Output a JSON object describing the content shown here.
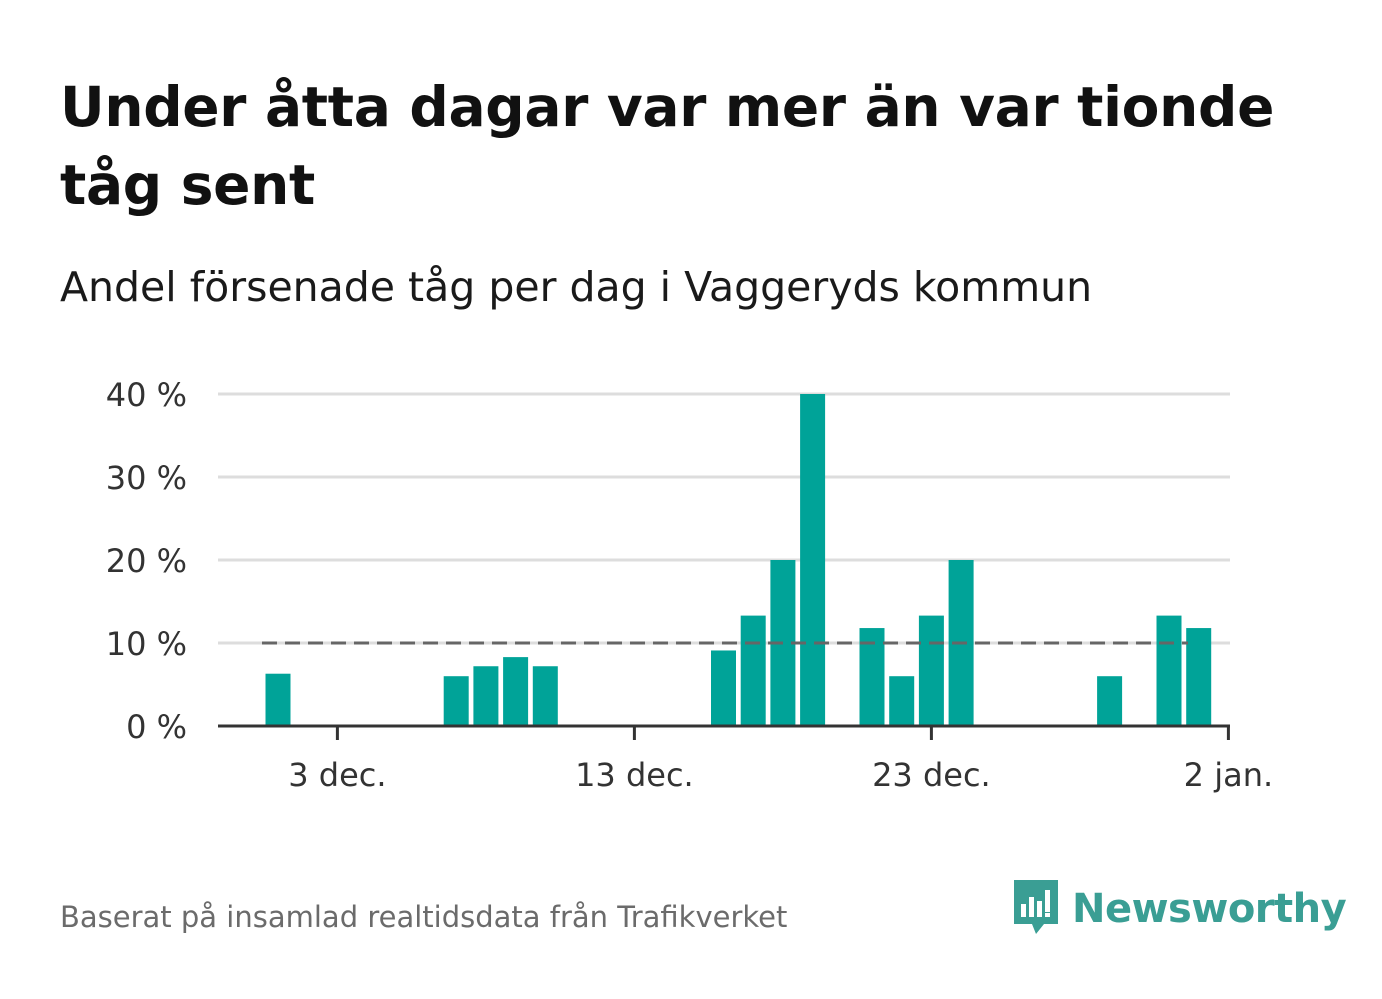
{
  "title": "Under åtta dagar var mer än var tionde tåg sent",
  "subtitle": "Andel försenade tåg per dag i Vaggeryds kommun",
  "footer": "Baserat på insamlad realtidsdata från Trafikverket",
  "brand": {
    "name": "Newsworthy",
    "icon": "newsworthy-logo-icon"
  },
  "colors": {
    "bar": "#00a398",
    "threshold": "#666666",
    "grid": "#dddddd",
    "axis": "#333333"
  },
  "chart_data": {
    "type": "bar",
    "x": [
      "2023-12-01",
      "2023-12-02",
      "2023-12-03",
      "2023-12-04",
      "2023-12-05",
      "2023-12-06",
      "2023-12-07",
      "2023-12-08",
      "2023-12-09",
      "2023-12-10",
      "2023-12-11",
      "2023-12-12",
      "2023-12-13",
      "2023-12-14",
      "2023-12-15",
      "2023-12-16",
      "2023-12-17",
      "2023-12-18",
      "2023-12-19",
      "2023-12-20",
      "2023-12-21",
      "2023-12-22",
      "2023-12-23",
      "2023-12-24",
      "2023-12-25",
      "2023-12-26",
      "2023-12-27",
      "2023-12-28",
      "2023-12-29",
      "2023-12-30",
      "2023-12-31",
      "2024-01-01"
    ],
    "values": [
      6.3,
      0,
      0,
      0,
      0,
      0,
      6,
      7.2,
      8.3,
      7.2,
      0,
      0,
      0,
      0,
      0,
      9.1,
      13.3,
      20,
      40,
      0,
      11.8,
      6,
      13.3,
      20,
      0,
      0,
      0,
      0,
      6,
      0,
      13.3,
      11.8
    ],
    "threshold": 10,
    "ylim": [
      0,
      40
    ],
    "yticks": [
      0,
      10,
      20,
      30,
      40
    ],
    "ytick_labels": [
      "0 %",
      "10 %",
      "20 %",
      "30 %",
      "40 %"
    ],
    "xticks": [
      "2023-12-03",
      "2023-12-13",
      "2023-12-23",
      "2024-01-02"
    ],
    "xtick_labels": [
      "3 dec.",
      "13 dec.",
      "23 dec.",
      "2 jan."
    ],
    "xlabel": "",
    "ylabel": "",
    "grid": true
  }
}
